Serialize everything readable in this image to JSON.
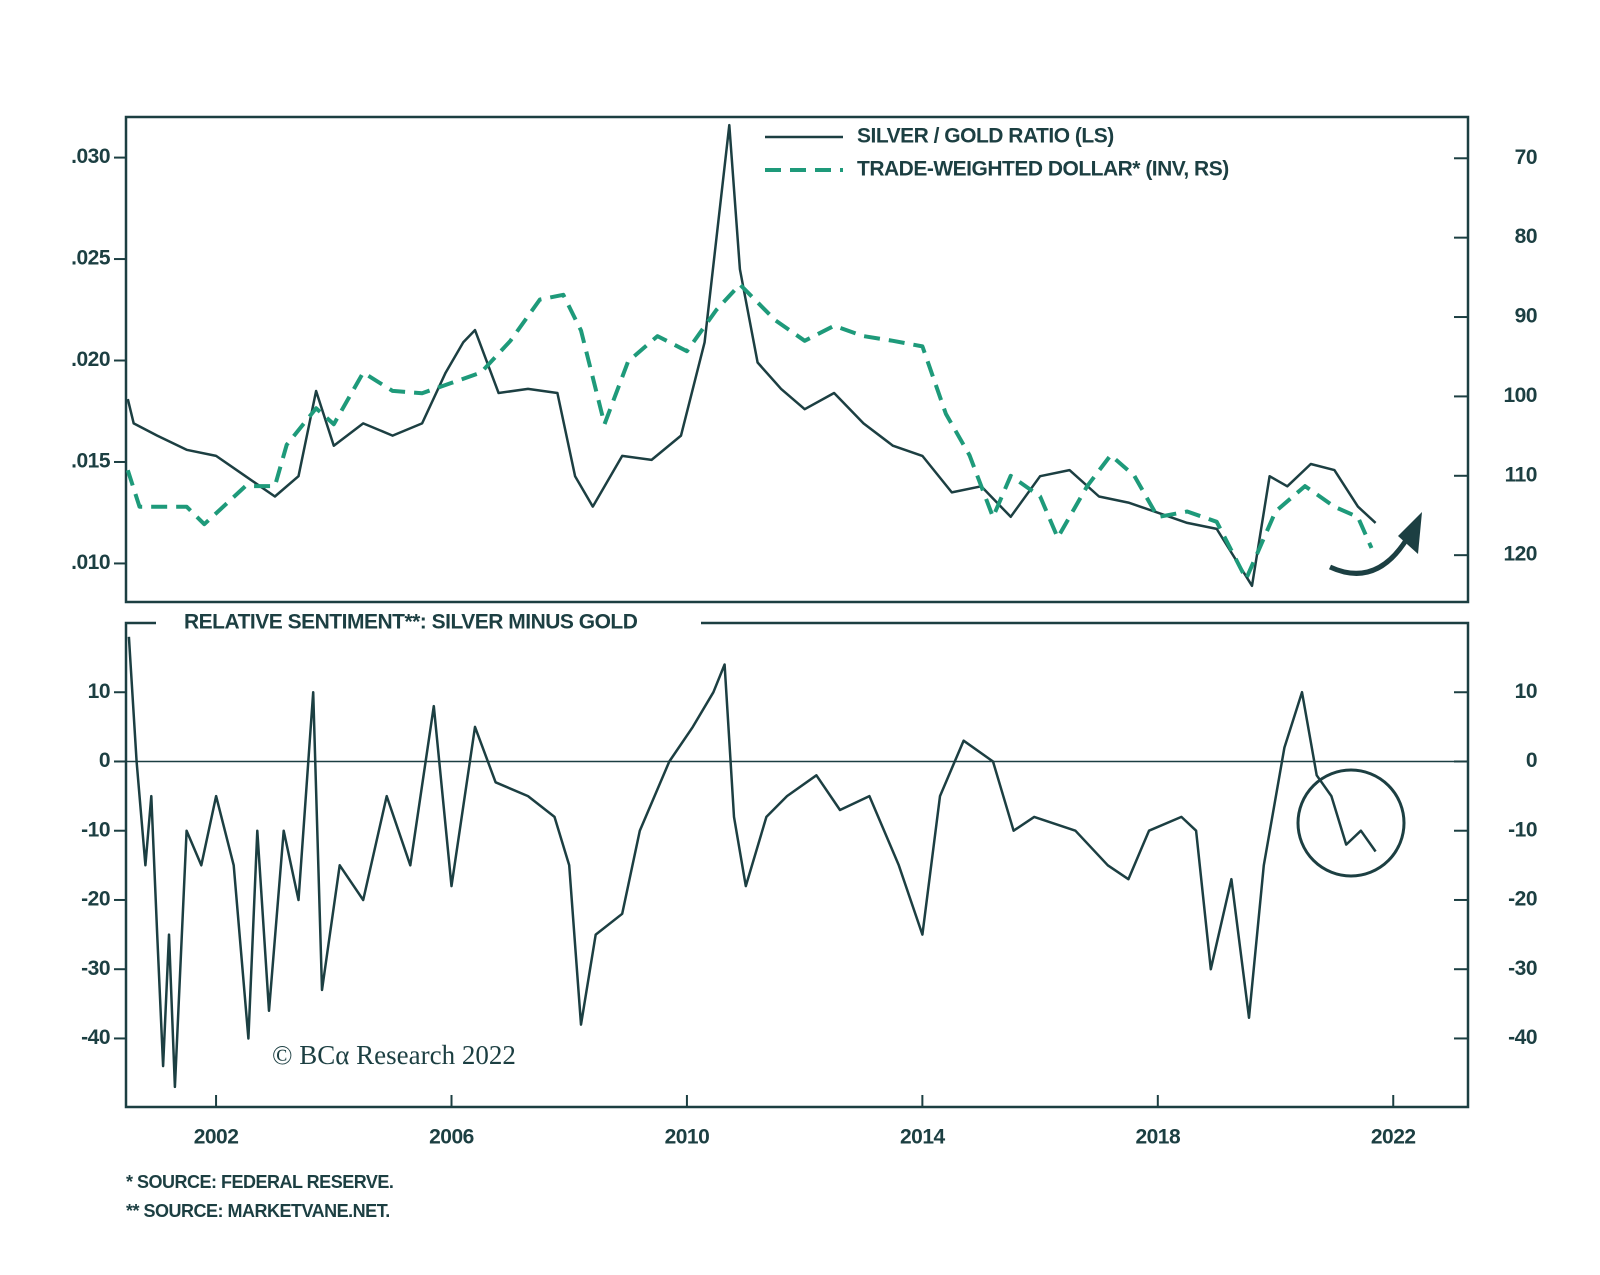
{
  "chart_data": [
    {
      "type": "line",
      "xlim": [
        2000.47,
        2023.27
      ],
      "ylim": [
        0.0081,
        0.032
      ],
      "yticks": [
        {
          "value": 0.01,
          "label": ".010"
        },
        {
          "value": 0.015,
          "label": ".015"
        },
        {
          "value": 0.02,
          "label": ".020"
        },
        {
          "value": 0.025,
          "label": ".025"
        },
        {
          "value": 0.03,
          "label": ".030"
        }
      ],
      "y2lim": [
        125.9,
        64.8
      ],
      "y2ticks": [
        70,
        80,
        90,
        100,
        110,
        120
      ],
      "legend": "top-right",
      "series": [
        {
          "name": "SILVER / GOLD RATIO (LS)",
          "color": "#1c3f42",
          "dash": false,
          "x": [
            2000.5,
            2000.6,
            2001.0,
            2001.5,
            2002.0,
            2002.5,
            2003.0,
            2003.4,
            2003.7,
            2004.0,
            2004.5,
            2005.0,
            2005.5,
            2005.9,
            2006.2,
            2006.4,
            2006.8,
            2007.3,
            2007.8,
            2008.1,
            2008.4,
            2008.9,
            2009.4,
            2009.9,
            2010.3,
            2010.72,
            2010.9,
            2011.2,
            2011.6,
            2012.0,
            2012.5,
            2013.0,
            2013.5,
            2014.0,
            2014.5,
            2015.0,
            2015.5,
            2016.0,
            2016.5,
            2017.0,
            2017.5,
            2018.0,
            2018.5,
            2019.0,
            2019.6,
            2019.9,
            2020.2,
            2020.6,
            2021.0,
            2021.4,
            2021.7
          ],
          "values": [
            0.0181,
            0.0169,
            0.0163,
            0.0156,
            0.0153,
            0.0143,
            0.0133,
            0.0143,
            0.0185,
            0.0158,
            0.0169,
            0.0163,
            0.0169,
            0.0194,
            0.0209,
            0.0215,
            0.0184,
            0.0186,
            0.0184,
            0.0143,
            0.0128,
            0.0153,
            0.0151,
            0.0163,
            0.0209,
            0.0316,
            0.0245,
            0.0199,
            0.0186,
            0.0176,
            0.0184,
            0.0169,
            0.0158,
            0.0153,
            0.0135,
            0.0138,
            0.0123,
            0.0143,
            0.0146,
            0.0133,
            0.013,
            0.0125,
            0.012,
            0.0117,
            0.0089,
            0.0143,
            0.0138,
            0.0149,
            0.0146,
            0.0128,
            0.012
          ]
        },
        {
          "name": "TRADE-WEIGHTED DOLLAR* (INV, RS)",
          "color": "#1e9a7a",
          "dash": true,
          "axis": "y2",
          "x": [
            2000.5,
            2000.7,
            2001.5,
            2001.8,
            2002.5,
            2003.0,
            2003.2,
            2003.7,
            2004.0,
            2004.5,
            2005.0,
            2005.5,
            2006.0,
            2006.5,
            2007.0,
            2007.5,
            2007.9,
            2008.2,
            2008.6,
            2009.0,
            2009.5,
            2010.0,
            2010.5,
            2010.9,
            2011.5,
            2012.0,
            2012.5,
            2013.0,
            2013.5,
            2014.0,
            2014.4,
            2014.8,
            2015.2,
            2015.5,
            2016.0,
            2016.3,
            2016.8,
            2017.2,
            2017.6,
            2018.0,
            2018.5,
            2019.0,
            2019.5,
            2020.0,
            2020.5,
            2021.0,
            2021.4,
            2021.63
          ],
          "values": [
            109.3,
            113.9,
            113.9,
            116.1,
            111.3,
            111.3,
            106.1,
            101.5,
            103.5,
            97.0,
            99.3,
            99.6,
            98.3,
            97.0,
            93.0,
            87.8,
            87.2,
            91.7,
            103.5,
            95.6,
            92.4,
            94.3,
            89.1,
            85.9,
            90.4,
            93.0,
            91.1,
            92.4,
            93.0,
            93.7,
            102.2,
            107.4,
            115.2,
            110.0,
            112.6,
            117.8,
            111.3,
            107.4,
            110.0,
            115.2,
            114.5,
            115.8,
            123.0,
            114.5,
            111.3,
            113.9,
            115.2,
            119.1
          ]
        }
      ]
    },
    {
      "type": "line",
      "title": "RELATIVE SENTIMENT**: SILVER MINUS GOLD",
      "annotation": "© BCα Research 2022",
      "xlim": [
        2000.47,
        2023.27
      ],
      "xticks": [
        2002,
        2006,
        2010,
        2014,
        2018,
        2022
      ],
      "ylim": [
        -49.9,
        20
      ],
      "yticks": [
        -40,
        -30,
        -20,
        -10,
        0,
        10
      ],
      "hlines": [
        0
      ],
      "series": [
        {
          "name": null,
          "color": "#1c3f42",
          "dash": false,
          "x": [
            2000.52,
            2000.65,
            2000.8,
            2000.9,
            2001.0,
            2001.1,
            2001.2,
            2001.3,
            2001.5,
            2001.75,
            2002.0,
            2002.3,
            2002.55,
            2002.7,
            2002.9,
            2003.15,
            2003.4,
            2003.65,
            2003.8,
            2004.1,
            2004.5,
            2004.9,
            2005.3,
            2005.7,
            2006.0,
            2006.4,
            2006.75,
            2007.3,
            2007.75,
            2008.0,
            2008.2,
            2008.45,
            2008.9,
            2009.2,
            2009.7,
            2010.1,
            2010.45,
            2010.64,
            2010.8,
            2011.0,
            2011.35,
            2011.7,
            2012.2,
            2012.6,
            2013.1,
            2013.6,
            2014.0,
            2014.3,
            2014.7,
            2015.2,
            2015.55,
            2015.9,
            2016.6,
            2017.15,
            2017.5,
            2017.85,
            2018.4,
            2018.65,
            2018.9,
            2019.25,
            2019.55,
            2019.8,
            2020.15,
            2020.45,
            2020.7,
            2020.95,
            2021.2,
            2021.45,
            2021.7
          ],
          "values": [
            18,
            0,
            -15,
            -5,
            -25,
            -44,
            -25,
            -47,
            -10,
            -15,
            -5,
            -15,
            -40,
            -10,
            -36,
            -10,
            -20,
            10,
            -33,
            -15,
            -20,
            -5,
            -15,
            8,
            -18,
            5,
            -3,
            -5,
            -8,
            -15,
            -38,
            -25,
            -22,
            -10,
            0,
            5,
            10,
            14,
            -8,
            -18,
            -8,
            -5,
            -2,
            -7,
            -5,
            -15,
            -25,
            -5,
            3,
            0,
            -10,
            -8,
            -10,
            -15,
            -17,
            -10,
            -8,
            -10,
            -30,
            -17,
            -37,
            -15,
            2,
            10,
            -2,
            -5,
            -12,
            -10,
            -13
          ]
        }
      ]
    }
  ],
  "footnotes": [
    "* SOURCE: FEDERAL RESERVE.",
    "** SOURCE: MARKETVANE.NET."
  ]
}
